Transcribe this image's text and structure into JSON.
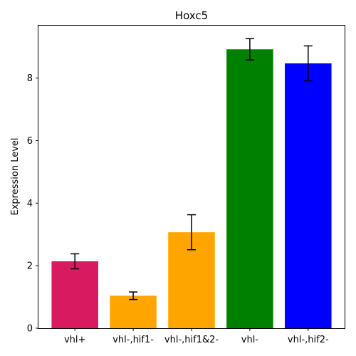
{
  "chart_data": {
    "type": "bar",
    "title": "Hoxc5",
    "xlabel": "",
    "ylabel": "Expression Level",
    "categories": [
      "vhl+",
      "vhl-,hif1-",
      "vhl-,hif1&2-",
      "vhl-",
      "vhl-,hif2-"
    ],
    "values": [
      2.14,
      1.04,
      3.07,
      8.92,
      8.47
    ],
    "errors": [
      0.24,
      0.12,
      0.56,
      0.34,
      0.56
    ],
    "colors": [
      "#d81b60",
      "#ffa500",
      "#ffa500",
      "#008000",
      "#0000ff"
    ],
    "ylim": [
      0,
      9.7
    ],
    "yticks": [
      0,
      2,
      4,
      6,
      8
    ],
    "grid": false,
    "legend": null
  }
}
